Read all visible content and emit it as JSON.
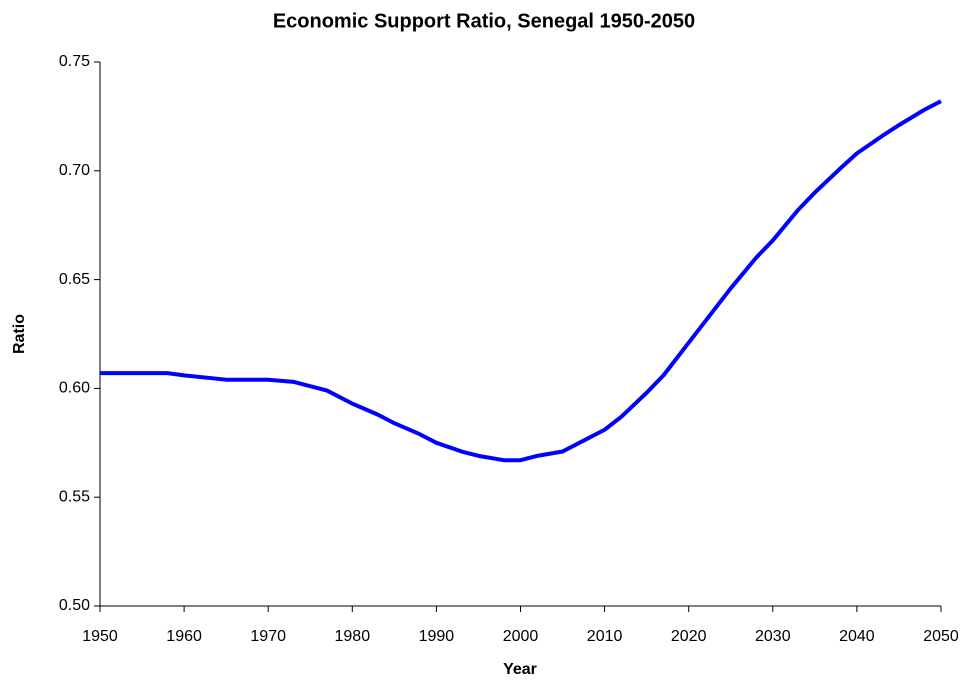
{
  "chart_data": {
    "type": "line",
    "title": "Economic Support Ratio, Senegal 1950-2050",
    "x_label": "Year",
    "y_label": "Ratio",
    "x": [
      1950,
      1955,
      1958,
      1960,
      1965,
      1970,
      1973,
      1975,
      1977,
      1980,
      1983,
      1985,
      1988,
      1990,
      1993,
      1995,
      1998,
      2000,
      2002,
      2005,
      2007,
      2010,
      2012,
      2015,
      2017,
      2020,
      2023,
      2025,
      2028,
      2030,
      2033,
      2035,
      2038,
      2040,
      2043,
      2045,
      2048,
      2050
    ],
    "series": [
      {
        "color": "#0000ff",
        "values": [
          0.607,
          0.607,
          0.607,
          0.606,
          0.604,
          0.604,
          0.603,
          0.601,
          0.599,
          0.593,
          0.588,
          0.584,
          0.579,
          0.575,
          0.571,
          0.569,
          0.567,
          0.567,
          0.569,
          0.571,
          0.575,
          0.581,
          0.587,
          0.598,
          0.606,
          0.621,
          0.636,
          0.646,
          0.66,
          0.668,
          0.682,
          0.69,
          0.701,
          0.708,
          0.716,
          0.721,
          0.728,
          0.732
        ]
      }
    ],
    "xlim": [
      1950,
      2050
    ],
    "xticks": [
      1950,
      1960,
      1970,
      1980,
      1990,
      2000,
      2010,
      2020,
      2030,
      2040,
      2050
    ],
    "ylim": [
      0.5,
      0.75
    ],
    "yticks": [
      {
        "value": 0.5,
        "label": "0.50"
      },
      0.55,
      {
        "value": 0.6,
        "label": "0.60"
      },
      0.65,
      {
        "value": 0.7,
        "label": "0.70"
      },
      0.75
    ],
    "grid": false
  }
}
